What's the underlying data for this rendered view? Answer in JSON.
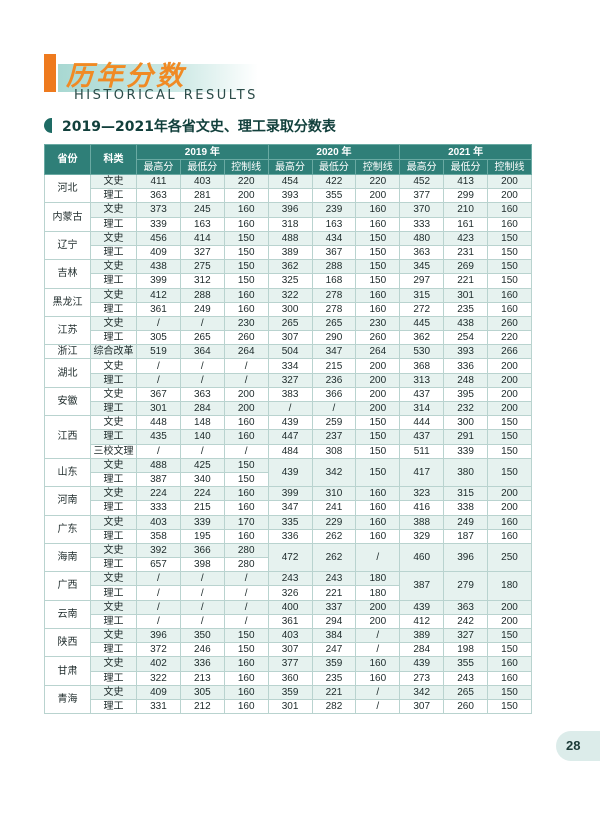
{
  "header": {
    "title": "历年分数",
    "subtitle": "HISTORICAL RESULTS"
  },
  "section_title": "2019—2021年各省文史、理工录取分数表",
  "table": {
    "col_province": "省份",
    "col_type": "科类",
    "years": [
      "2019 年",
      "2020 年",
      "2021 年"
    ],
    "subcols": [
      "最高分",
      "最低分",
      "控制线"
    ],
    "rows": [
      {
        "p": "河北",
        "k": "文史",
        "v": [
          "411",
          "403",
          "220",
          "454",
          "422",
          "220",
          "452",
          "413",
          "200"
        ]
      },
      {
        "p": "",
        "k": "理工",
        "v": [
          "363",
          "281",
          "200",
          "393",
          "355",
          "200",
          "377",
          "299",
          "200"
        ]
      },
      {
        "p": "内蒙古",
        "k": "文史",
        "v": [
          "373",
          "245",
          "160",
          "396",
          "239",
          "160",
          "370",
          "210",
          "160"
        ]
      },
      {
        "p": "",
        "k": "理工",
        "v": [
          "339",
          "163",
          "160",
          "318",
          "163",
          "160",
          "333",
          "161",
          "160"
        ]
      },
      {
        "p": "辽宁",
        "k": "文史",
        "v": [
          "456",
          "414",
          "150",
          "488",
          "434",
          "150",
          "480",
          "423",
          "150"
        ]
      },
      {
        "p": "",
        "k": "理工",
        "v": [
          "409",
          "327",
          "150",
          "389",
          "367",
          "150",
          "363",
          "231",
          "150"
        ]
      },
      {
        "p": "吉林",
        "k": "文史",
        "v": [
          "438",
          "275",
          "150",
          "362",
          "288",
          "150",
          "345",
          "269",
          "150"
        ]
      },
      {
        "p": "",
        "k": "理工",
        "v": [
          "399",
          "312",
          "150",
          "325",
          "168",
          "150",
          "297",
          "221",
          "150"
        ]
      },
      {
        "p": "黑龙江",
        "k": "文史",
        "v": [
          "412",
          "288",
          "160",
          "322",
          "278",
          "160",
          "315",
          "301",
          "160"
        ]
      },
      {
        "p": "",
        "k": "理工",
        "v": [
          "361",
          "249",
          "160",
          "300",
          "278",
          "160",
          "272",
          "235",
          "160"
        ]
      },
      {
        "p": "江苏",
        "k": "文史",
        "v": [
          "/",
          "/",
          "230",
          "265",
          "265",
          "230",
          "445",
          "438",
          "260"
        ]
      },
      {
        "p": "",
        "k": "理工",
        "v": [
          "305",
          "265",
          "260",
          "307",
          "290",
          "260",
          "362",
          "254",
          "220"
        ]
      },
      {
        "p": "浙江",
        "k": "综合改革",
        "v": [
          "519",
          "364",
          "264",
          "504",
          "347",
          "264",
          "530",
          "393",
          "266"
        ]
      },
      {
        "p": "湖北",
        "k": "文史",
        "v": [
          "/",
          "/",
          "/",
          "334",
          "215",
          "200",
          "368",
          "336",
          "200"
        ]
      },
      {
        "p": "",
        "k": "理工",
        "v": [
          "/",
          "/",
          "/",
          "327",
          "236",
          "200",
          "313",
          "248",
          "200"
        ]
      },
      {
        "p": "安徽",
        "k": "文史",
        "v": [
          "367",
          "363",
          "200",
          "383",
          "366",
          "200",
          "437",
          "395",
          "200"
        ]
      },
      {
        "p": "",
        "k": "理工",
        "v": [
          "301",
          "284",
          "200",
          "/",
          "/",
          "200",
          "314",
          "232",
          "200"
        ]
      },
      {
        "p": "江西",
        "k": "文史",
        "v": [
          "448",
          "148",
          "160",
          "439",
          "259",
          "150",
          "444",
          "300",
          "150"
        ]
      },
      {
        "p": "",
        "k": "理工",
        "v": [
          "435",
          "140",
          "160",
          "447",
          "237",
          "150",
          "437",
          "291",
          "150"
        ]
      },
      {
        "p": "",
        "k": "三校文理",
        "v": [
          "/",
          "/",
          "/",
          "484",
          "308",
          "150",
          "511",
          "339",
          "150"
        ]
      },
      {
        "p": "山东",
        "k": "文史",
        "v": [
          "488",
          "425",
          "150",
          "439",
          "342",
          "150",
          "417",
          "380",
          "150"
        ]
      },
      {
        "p": "",
        "k": "理工",
        "v": [
          "387",
          "340",
          "150"
        ]
      },
      {
        "p": "河南",
        "k": "文史",
        "v": [
          "224",
          "224",
          "160",
          "399",
          "310",
          "160",
          "323",
          "315",
          "200"
        ]
      },
      {
        "p": "",
        "k": "理工",
        "v": [
          "333",
          "215",
          "160",
          "347",
          "241",
          "160",
          "416",
          "338",
          "200"
        ]
      },
      {
        "p": "广东",
        "k": "文史",
        "v": [
          "403",
          "339",
          "170",
          "335",
          "229",
          "160",
          "388",
          "249",
          "160"
        ]
      },
      {
        "p": "",
        "k": "理工",
        "v": [
          "358",
          "195",
          "160",
          "336",
          "262",
          "160",
          "329",
          "187",
          "160"
        ]
      },
      {
        "p": "海南",
        "k": "文史",
        "v": [
          "392",
          "366",
          "280",
          "472",
          "262",
          "/",
          "460",
          "396",
          "250"
        ]
      },
      {
        "p": "",
        "k": "理工",
        "v": [
          "657",
          "398",
          "280"
        ]
      },
      {
        "p": "广西",
        "k": "文史",
        "v": [
          "/",
          "/",
          "/",
          "243",
          "243",
          "180",
          "387",
          "279",
          "180"
        ]
      },
      {
        "p": "",
        "k": "理工",
        "v": [
          "/",
          "/",
          "/",
          "326",
          "221",
          "180"
        ]
      },
      {
        "p": "云南",
        "k": "文史",
        "v": [
          "/",
          "/",
          "/",
          "400",
          "337",
          "200",
          "439",
          "363",
          "200"
        ]
      },
      {
        "p": "",
        "k": "理工",
        "v": [
          "/",
          "/",
          "/",
          "361",
          "294",
          "200",
          "412",
          "242",
          "200"
        ]
      },
      {
        "p": "陕西",
        "k": "文史",
        "v": [
          "396",
          "350",
          "150",
          "403",
          "384",
          "/",
          "389",
          "327",
          "150"
        ]
      },
      {
        "p": "",
        "k": "理工",
        "v": [
          "372",
          "246",
          "150",
          "307",
          "247",
          "/",
          "284",
          "198",
          "150"
        ]
      },
      {
        "p": "甘肃",
        "k": "文史",
        "v": [
          "402",
          "336",
          "160",
          "377",
          "359",
          "160",
          "439",
          "355",
          "160"
        ]
      },
      {
        "p": "",
        "k": "理工",
        "v": [
          "322",
          "213",
          "160",
          "360",
          "235",
          "160",
          "273",
          "243",
          "160"
        ]
      },
      {
        "p": "青海",
        "k": "文史",
        "v": [
          "409",
          "305",
          "160",
          "359",
          "221",
          "/",
          "342",
          "265",
          "150"
        ]
      },
      {
        "p": "",
        "k": "理工",
        "v": [
          "331",
          "212",
          "160",
          "301",
          "282",
          "/",
          "307",
          "260",
          "150"
        ]
      }
    ]
  },
  "page_number": "28"
}
